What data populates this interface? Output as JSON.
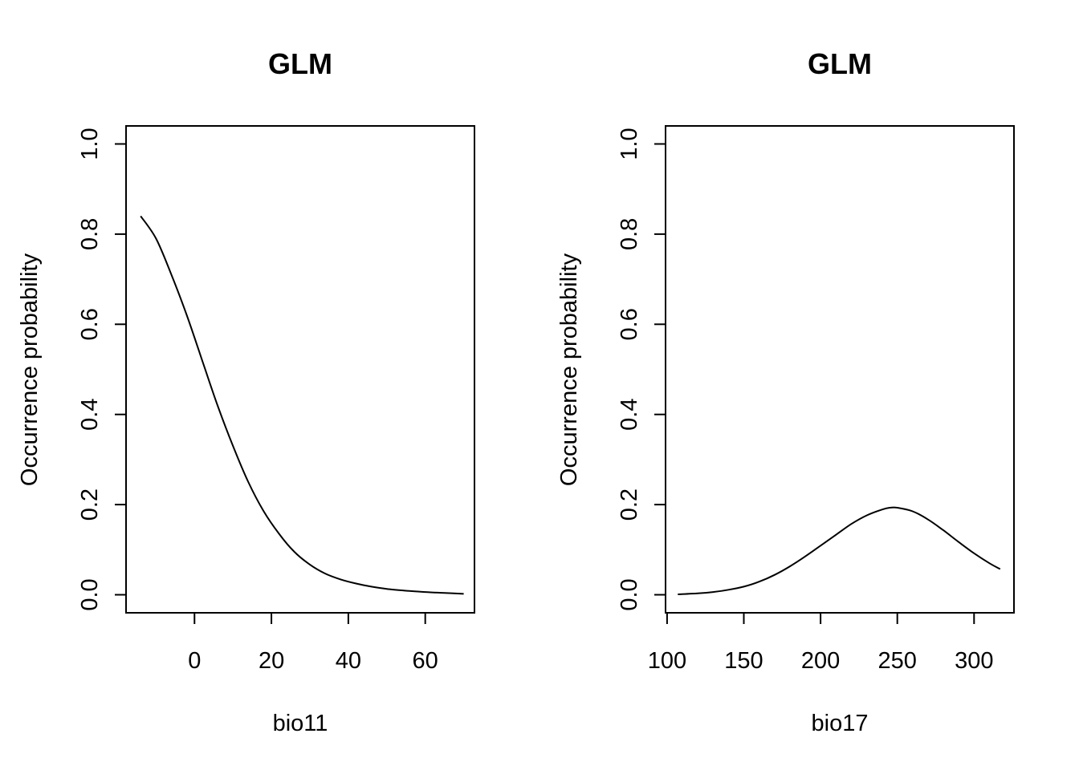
{
  "chart_data": [
    {
      "type": "line",
      "title": "GLM",
      "xlabel": "bio11",
      "ylabel": "Occurrence probability",
      "xlim": [
        -17.8,
        72.8
      ],
      "ylim": [
        -0.04,
        1.04
      ],
      "x_ticks": [
        0,
        20,
        40,
        60
      ],
      "y_ticks": [
        0.0,
        0.2,
        0.4,
        0.6,
        0.8,
        1.0
      ],
      "y_tick_labels": [
        "0.0",
        "0.2",
        "0.4",
        "0.6",
        "0.8",
        "1.0"
      ],
      "grid": false,
      "series": [
        {
          "x": [
            -14,
            -10,
            -6,
            -2,
            2,
            6,
            10,
            14,
            18,
            22,
            26,
            30,
            34,
            38,
            42,
            46,
            50,
            55,
            60,
            65,
            70
          ],
          "values": [
            0.84,
            0.79,
            0.71,
            0.62,
            0.52,
            0.42,
            0.33,
            0.25,
            0.185,
            0.135,
            0.095,
            0.067,
            0.047,
            0.034,
            0.025,
            0.018,
            0.013,
            0.009,
            0.006,
            0.004,
            0.002
          ]
        }
      ]
    },
    {
      "type": "line",
      "title": "GLM",
      "xlabel": "bio17",
      "ylabel": "Occurrence probability",
      "xlim": [
        99.0,
        326.0
      ],
      "ylim": [
        -0.04,
        1.04
      ],
      "x_ticks": [
        100,
        150,
        200,
        250,
        300
      ],
      "y_ticks": [
        0.0,
        0.2,
        0.4,
        0.6,
        0.8,
        1.0
      ],
      "y_tick_labels": [
        "0.0",
        "0.2",
        "0.4",
        "0.6",
        "0.8",
        "1.0"
      ],
      "grid": false,
      "series": [
        {
          "x": [
            107,
            120,
            130,
            140,
            150,
            160,
            170,
            180,
            190,
            200,
            210,
            220,
            230,
            240,
            245,
            250,
            260,
            270,
            280,
            290,
            300,
            310,
            317
          ],
          "values": [
            0.001,
            0.003,
            0.006,
            0.011,
            0.018,
            0.029,
            0.044,
            0.063,
            0.085,
            0.109,
            0.133,
            0.157,
            0.176,
            0.189,
            0.193,
            0.193,
            0.185,
            0.167,
            0.143,
            0.117,
            0.092,
            0.07,
            0.057
          ]
        }
      ]
    }
  ]
}
